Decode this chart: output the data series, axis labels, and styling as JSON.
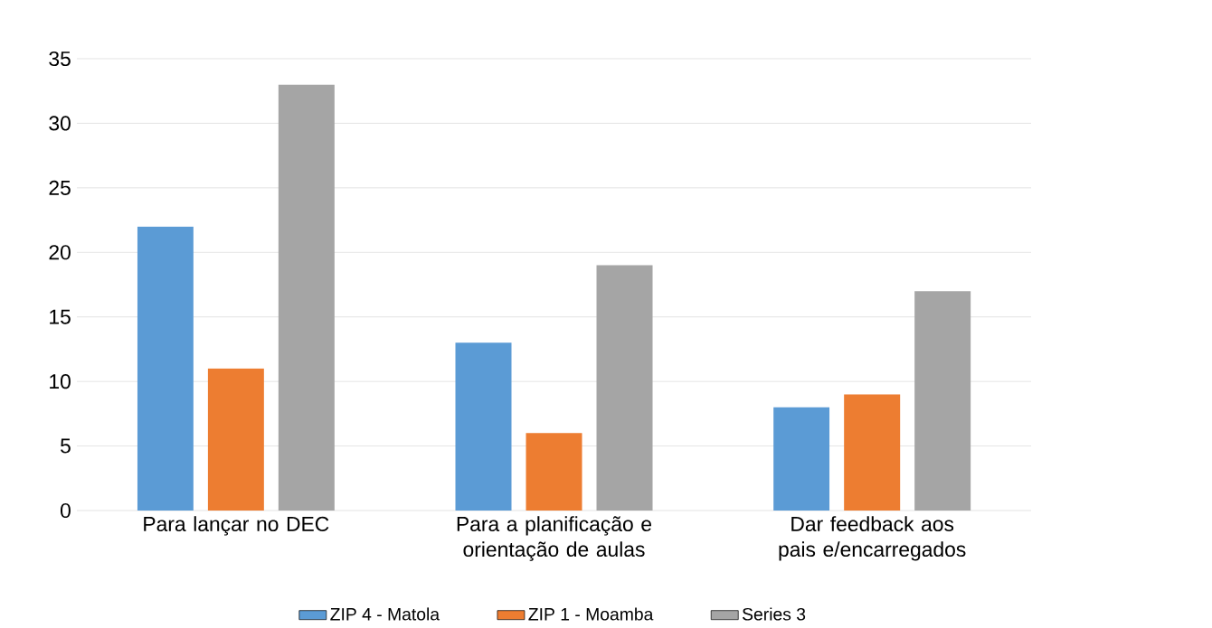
{
  "chart_data": {
    "type": "bar",
    "categories": [
      "Para lançar no DEC",
      "Para a planificação e orientação de aulas",
      "Dar feedback aos pais e/encarregados"
    ],
    "series": [
      {
        "name": "ZIP 4 - Matola",
        "color": "#5b9bd5",
        "values": [
          22,
          13,
          8
        ]
      },
      {
        "name": "ZIP 1 - Moamba",
        "color": "#ed7d31",
        "values": [
          11,
          6,
          9
        ]
      },
      {
        "name": "Series 3",
        "color": "#a5a5a5",
        "values": [
          33,
          19,
          17
        ]
      }
    ],
    "ylim": [
      0,
      35
    ],
    "yticks": [
      0,
      5,
      10,
      15,
      20,
      25,
      30,
      35
    ],
    "grid": "y",
    "legend": "bottom"
  }
}
